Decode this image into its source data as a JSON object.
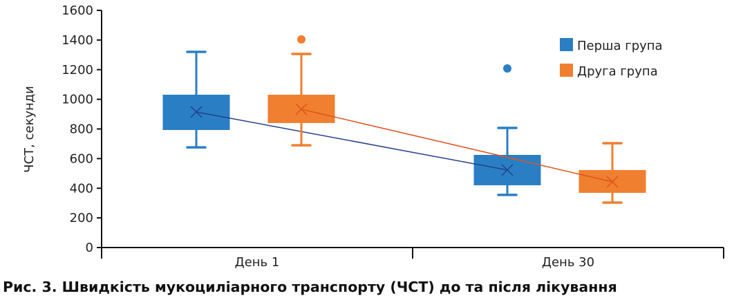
{
  "chart_data": {
    "type": "box",
    "title": "Рис. 3. Швидкість мукоциліарного транспорту (ЧСТ) до та після лікування",
    "xlabel": "",
    "ylabel": "ЧСТ, секунди",
    "ylim": [
      0,
      1600
    ],
    "yticks": [
      "0",
      "200",
      "400",
      "600",
      "800",
      "1000",
      "1200",
      "1400",
      "1600"
    ],
    "categories": [
      "День 1",
      "День 30"
    ],
    "legend_position": "top-right",
    "series": [
      {
        "name": "Перша група",
        "color": "#2a7fc4",
        "mean_line_color": "#24408e",
        "boxes": [
          {
            "min": 676,
            "q1": 793,
            "q3": 1031,
            "max": 1320,
            "mean": 915,
            "outliers": []
          },
          {
            "min": 355,
            "q1": 420,
            "q3": 625,
            "max": 807,
            "mean": 523,
            "outliers": [
              1208
            ]
          }
        ]
      },
      {
        "name": "Друга група",
        "color": "#f07f2f",
        "mean_line_color": "#e0541e",
        "boxes": [
          {
            "min": 690,
            "q1": 840,
            "q3": 1031,
            "max": 1306,
            "mean": 933,
            "outliers": [
              1404
            ]
          },
          {
            "min": 303,
            "q1": 369,
            "q3": 523,
            "max": 704,
            "mean": 443,
            "outliers": []
          }
        ]
      }
    ]
  }
}
